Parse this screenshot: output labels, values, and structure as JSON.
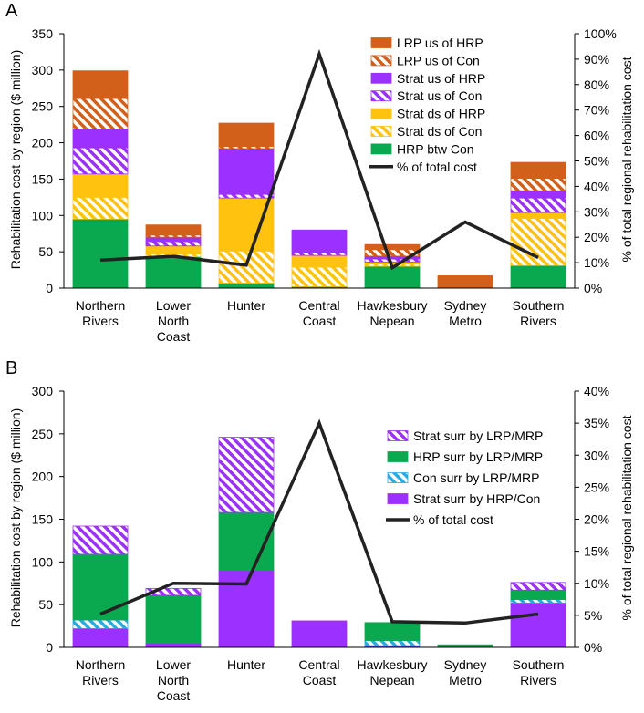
{
  "chart_data": [
    {
      "panel_label": "A",
      "type": "bar",
      "stacked": true,
      "categories": [
        [
          "Northern",
          "Rivers"
        ],
        [
          "Lower",
          "North",
          "Coast"
        ],
        [
          "Hunter"
        ],
        [
          "Central",
          "Coast"
        ],
        [
          "Hawkesbury",
          "Nepean"
        ],
        [
          "Sydney",
          "Metro"
        ],
        [
          "Southern",
          "Rivers"
        ]
      ],
      "ylabel": "Rehabilitation cost by region ($ million)",
      "y2label": "% of total regional rehabilitation cost",
      "ylim": [
        0,
        350
      ],
      "yticks": [
        "0",
        "50",
        "100",
        "150",
        "200",
        "250",
        "300",
        "350"
      ],
      "y2lim": [
        0,
        100
      ],
      "y2ticks": [
        "0%",
        "10%",
        "20%",
        "30%",
        "40%",
        "50%",
        "60%",
        "70%",
        "80%",
        "90%",
        "100%"
      ],
      "series": [
        {
          "name": "HRP btw Con",
          "color": "#0aa84f",
          "pattern": "solid",
          "values": [
            95,
            43,
            7,
            2,
            30,
            0,
            31
          ]
        },
        {
          "name": "Strat ds of Con",
          "color": "#ffc20e",
          "pattern": "hatch",
          "values": [
            30,
            4,
            44,
            27,
            3,
            0,
            65
          ]
        },
        {
          "name": "Strat ds of HRP",
          "color": "#ffc20e",
          "pattern": "solid",
          "values": [
            32,
            11,
            73,
            16,
            3,
            0,
            8
          ]
        },
        {
          "name": "Strat us of Con",
          "color": "#9b30ff",
          "pattern": "hatch",
          "values": [
            36,
            6,
            5,
            4,
            4,
            0,
            20
          ]
        },
        {
          "name": "Strat us of HRP",
          "color": "#9b30ff",
          "pattern": "solid",
          "values": [
            26,
            6,
            63,
            31,
            4,
            0,
            10
          ]
        },
        {
          "name": "LRP us of Con",
          "color": "#d2601a",
          "pattern": "hatch",
          "values": [
            42,
            3,
            3,
            0,
            9,
            1,
            17
          ]
        },
        {
          "name": "LRP us of HRP",
          "color": "#d2601a",
          "pattern": "solid",
          "values": [
            38,
            14,
            32,
            0,
            7,
            16,
            22
          ]
        }
      ],
      "line": {
        "name": "% of total cost",
        "color": "#222222",
        "values": [
          11,
          12.5,
          9,
          92,
          8,
          26,
          12
        ]
      },
      "legend_order": [
        "LRP us of HRP",
        "LRP us of Con",
        "Strat us of HRP",
        "Strat us of Con",
        "Strat ds of HRP",
        "Strat ds of Con",
        "HRP btw Con",
        "% of total cost"
      ],
      "legend_position": "top-right"
    },
    {
      "panel_label": "B",
      "type": "bar",
      "stacked": true,
      "categories": [
        [
          "Northern",
          "Rivers"
        ],
        [
          "Lower",
          "North",
          "Coast"
        ],
        [
          "Hunter"
        ],
        [
          "Central",
          "Coast"
        ],
        [
          "Hawkesbury",
          "Nepean"
        ],
        [
          "Sydney",
          "Metro"
        ],
        [
          "Southern",
          "Rivers"
        ]
      ],
      "ylabel": "Rehabilitation cost by region ($ million)",
      "y2label": "% of total regional rehabilitation cost",
      "ylim": [
        0,
        300
      ],
      "yticks": [
        "0",
        "50",
        "100",
        "150",
        "200",
        "250",
        "300"
      ],
      "y2lim": [
        0,
        40
      ],
      "y2ticks": [
        "0%",
        "5%",
        "10%",
        "15%",
        "20%",
        "25%",
        "30%",
        "35%",
        "40%"
      ],
      "series": [
        {
          "name": "Strat surr by HRP/Con",
          "color": "#9b30ff",
          "pattern": "solid",
          "values": [
            22,
            5,
            90,
            31,
            2,
            0,
            52
          ]
        },
        {
          "name": "Con surr by LRP/MRP",
          "color": "#29aae1",
          "pattern": "hatch",
          "values": [
            10,
            0,
            0,
            0,
            6,
            0,
            4
          ]
        },
        {
          "name": "HRP surr by LRP/MRP",
          "color": "#0aa84f",
          "pattern": "solid",
          "values": [
            77,
            56,
            68,
            0,
            21,
            3,
            11
          ]
        },
        {
          "name": "Strat surr by LRP/MRP",
          "color": "#9b30ff",
          "pattern": "hatch",
          "values": [
            33,
            8,
            88,
            0,
            0,
            0,
            9
          ]
        }
      ],
      "line": {
        "name": "% of total cost",
        "color": "#222222",
        "values": [
          5.2,
          10,
          9.9,
          35,
          4,
          3.8,
          5.2
        ]
      },
      "legend_order": [
        "Strat surr by LRP/MRP",
        "HRP surr by LRP/MRP",
        "Con surr by LRP/MRP",
        "Strat surr by HRP/Con",
        "% of total cost"
      ],
      "legend_position": "top-right"
    }
  ]
}
